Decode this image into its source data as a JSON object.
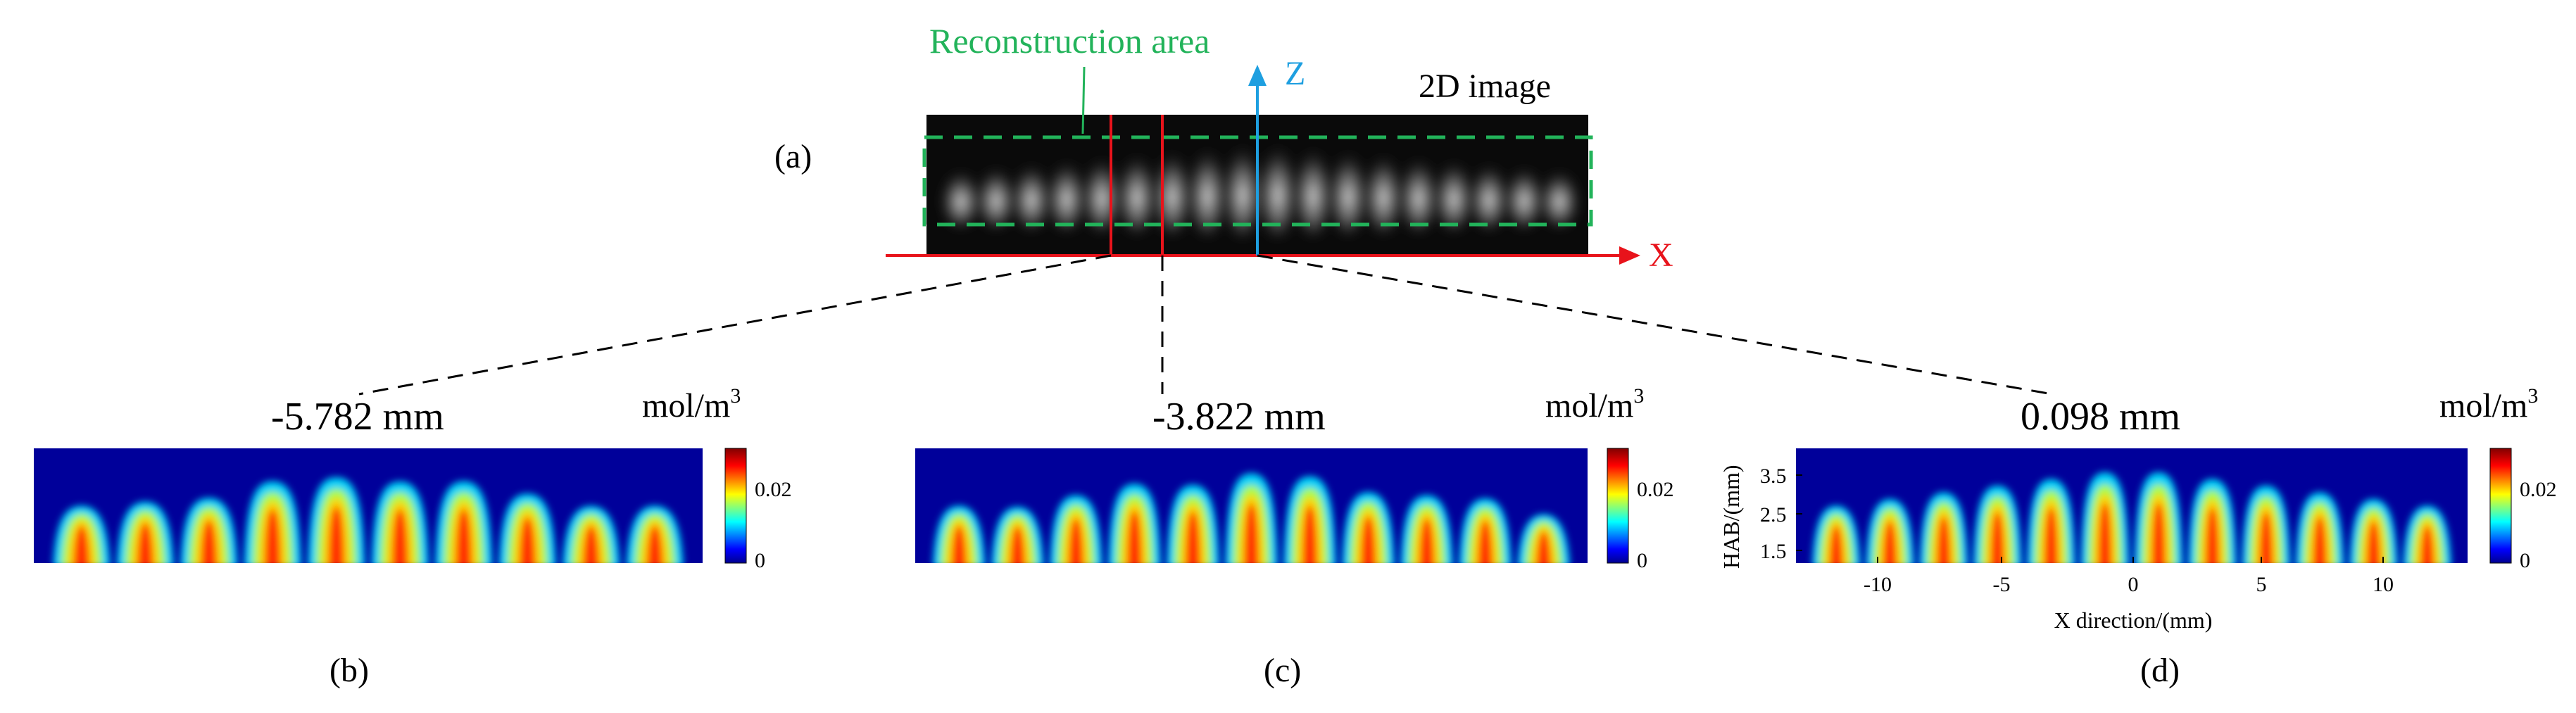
{
  "figure": {
    "panel_a": {
      "label": "(a)",
      "image_title": "2D image",
      "reconstruction_label": "Reconstruction area",
      "x_axis_label": "X",
      "z_axis_label": "Z",
      "colors": {
        "reconstruction": "#22b35a",
        "slice_lines": "#e8131b",
        "z_axis": "#1e9fe0"
      }
    },
    "panels": [
      {
        "id": "b",
        "label": "(b)",
        "position": "-5.782 mm",
        "unit": "mol/m",
        "unit_sup": "3",
        "cb_max": "0.02",
        "cb_min": "0",
        "peak_count": 10
      },
      {
        "id": "c",
        "label": "(c)",
        "position": "-3.822 mm",
        "unit": "mol/m",
        "unit_sup": "3",
        "cb_max": "0.02",
        "cb_min": "0",
        "peak_count": 11
      },
      {
        "id": "d",
        "label": "(d)",
        "position": "0.098 mm",
        "unit": "mol/m",
        "unit_sup": "3",
        "cb_max": "0.02",
        "cb_min": "0",
        "peak_count": 12
      }
    ],
    "panel_d_axes": {
      "xlabel": "X direction/(mm)",
      "ylabel": "HAB/(mm)",
      "xticks": [
        "-10",
        "-5",
        "0",
        "5",
        "10"
      ],
      "yticks": [
        "3.5",
        "2.5",
        "1.5"
      ]
    }
  }
}
